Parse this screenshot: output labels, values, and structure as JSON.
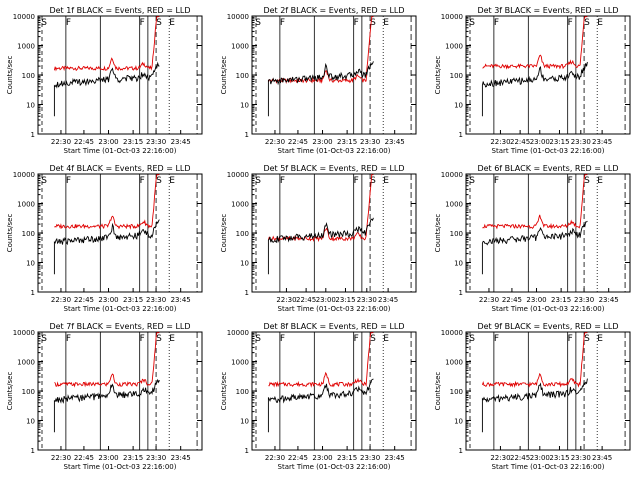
{
  "figure": {
    "ylabel": "Counts/sec",
    "xlabel": "Start Time (01-Oct-03 22:16:00)",
    "y_ticks": [
      "1",
      "10",
      "100",
      "1000",
      "10000"
    ],
    "x_ticks_a": [
      "22:30",
      "22:45",
      "23:00",
      "23:15",
      "23:30",
      "23:45"
    ],
    "x_ticks_b": [
      "22:30",
      "22:45",
      "23:00",
      "23:15",
      "23:30",
      "23:45"
    ],
    "colors": {
      "events": "#000000",
      "lld": "#e00000",
      "axes": "#000000"
    }
  },
  "chart_data": [
    {
      "title": "Det 1f BLACK = Events, RED = LLD",
      "type": "line",
      "markers": [
        "S",
        "F",
        "F",
        "S",
        "E"
      ],
      "ylog": true,
      "ylim": [
        1,
        10000
      ]
    },
    {
      "title": "Det 2f BLACK = Events, RED = LLD",
      "type": "line",
      "markers": [
        "S",
        "F",
        "F",
        "S",
        "E"
      ],
      "ylog": true,
      "ylim": [
        1,
        10000
      ]
    },
    {
      "title": "Det 3f BLACK = Events, RED = LLD",
      "type": "line",
      "markers": [
        "S",
        "F",
        "F",
        "S",
        "E"
      ],
      "ylog": true,
      "ylim": [
        1,
        10000
      ]
    },
    {
      "title": "Det 4f BLACK = Events, RED = LLD",
      "type": "line",
      "markers": [
        "S",
        "F",
        "F",
        "S",
        "E"
      ],
      "ylog": true,
      "ylim": [
        1,
        10000
      ]
    },
    {
      "title": "Det 5f BLACK = Events, RED = LLD",
      "type": "line",
      "markers": [
        "S",
        "F",
        "F",
        "S",
        "E"
      ],
      "ylog": true,
      "ylim": [
        1,
        10000
      ]
    },
    {
      "title": "Det 6f BLACK = Events, RED = LLD",
      "type": "line",
      "markers": [
        "S",
        "F",
        "F",
        "S",
        "E"
      ],
      "ylog": true,
      "ylim": [
        1,
        10000
      ]
    },
    {
      "title": "Det 7f BLACK = Events, RED = LLD",
      "type": "line",
      "markers": [
        "S",
        "F",
        "F",
        "S",
        "E"
      ],
      "ylog": true,
      "ylim": [
        1,
        10000
      ]
    },
    {
      "title": "Det 8f BLACK = Events, RED = LLD",
      "type": "line",
      "markers": [
        "S",
        "F",
        "F",
        "S",
        "E"
      ],
      "ylog": true,
      "ylim": [
        1,
        10000
      ]
    },
    {
      "title": "Det 9f BLACK = Events, RED = LLD",
      "type": "line",
      "markers": [
        "S",
        "F",
        "F",
        "S",
        "E"
      ],
      "ylog": true,
      "ylim": [
        1,
        10000
      ]
    }
  ]
}
